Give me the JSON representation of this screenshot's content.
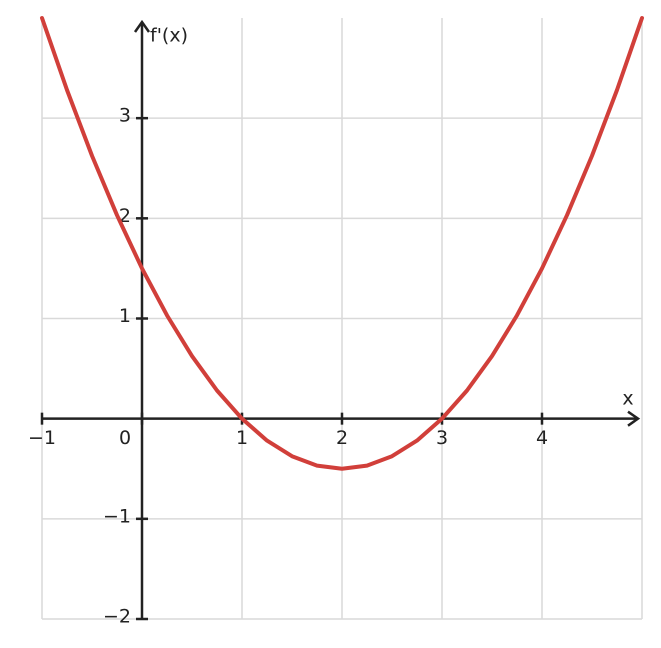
{
  "chart_data": {
    "type": "line",
    "x_label": "x",
    "y_label": "f'(x)",
    "x": [
      -1,
      -0.75,
      -0.5,
      -0.25,
      0,
      0.25,
      0.5,
      0.75,
      1,
      1.25,
      1.5,
      1.75,
      2,
      2.25,
      2.5,
      2.75,
      3,
      3.25,
      3.5,
      3.75,
      4,
      4.25,
      4.5,
      4.75,
      5
    ],
    "series": [
      {
        "color": "#d13f3a",
        "values": [
          4,
          3.28125,
          2.625,
          2.03125,
          1.5,
          1.03125,
          0.625,
          0.28125,
          0,
          -0.21875,
          -0.375,
          -0.46875,
          -0.5,
          -0.46875,
          -0.375,
          -0.21875,
          0,
          0.28125,
          0.625,
          1.03125,
          1.5,
          2.03125,
          2.625,
          3.28125,
          4
        ]
      }
    ],
    "xlim": [
      -1,
      5
    ],
    "ylim": [
      -2,
      4
    ],
    "xticks": [
      {
        "value": -1,
        "label": "−1"
      },
      0,
      1,
      2,
      3,
      4
    ],
    "yticks": [
      {
        "value": -2,
        "label": "−2"
      },
      {
        "value": -1,
        "label": "−1"
      },
      1,
      2,
      3
    ],
    "grid": true
  }
}
